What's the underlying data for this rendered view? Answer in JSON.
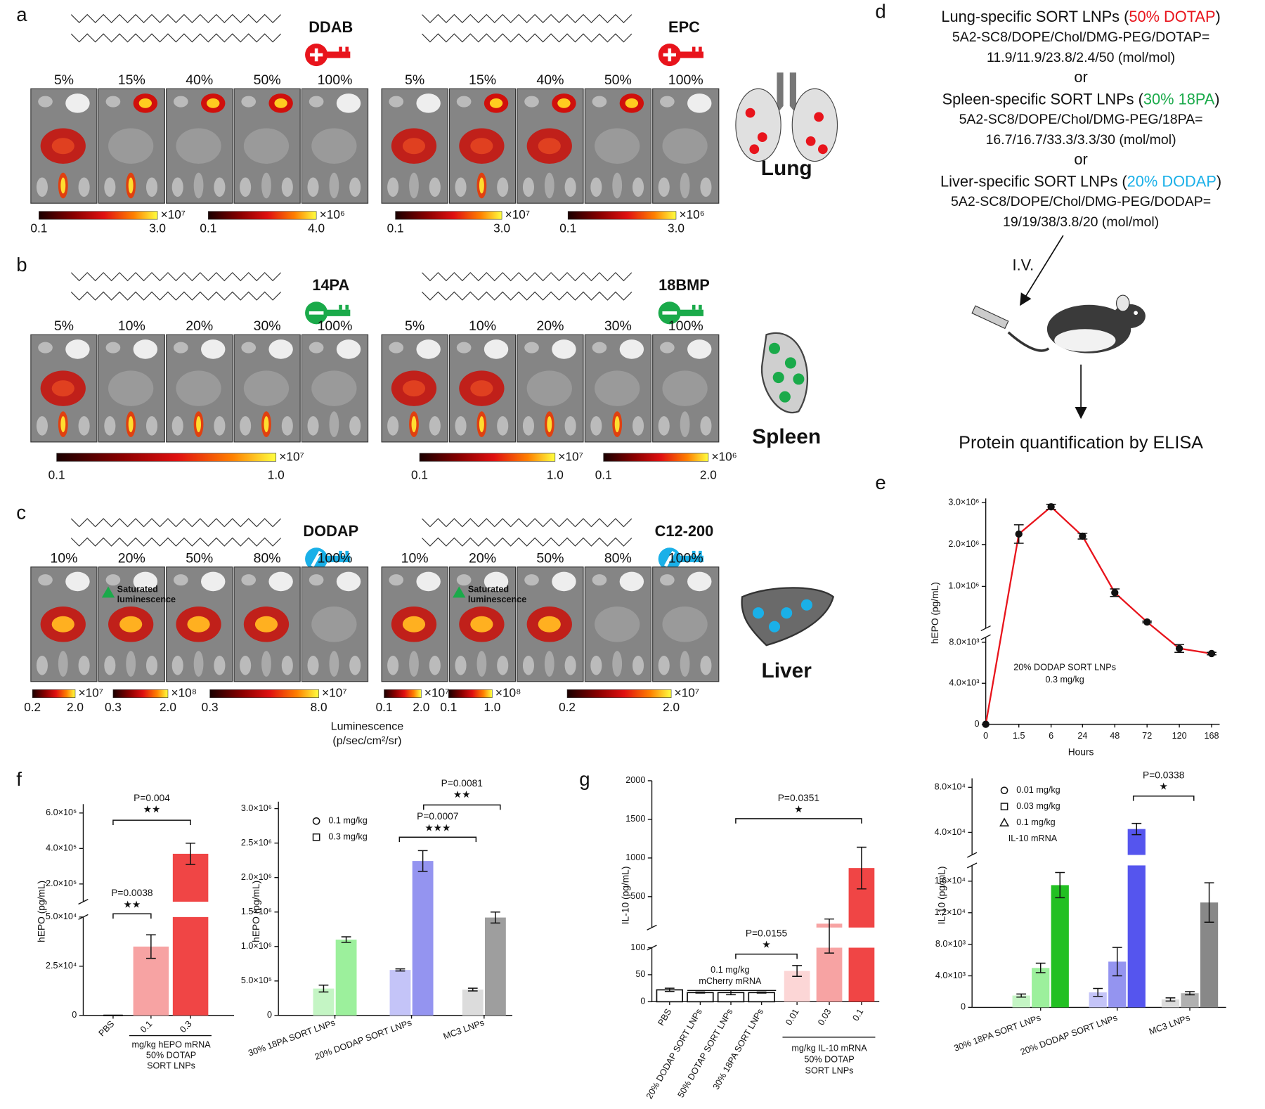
{
  "panels": [
    {
      "letter": "a",
      "organ": "Lung",
      "color": "#e8141c",
      "lipids": [
        {
          "name": "DDAB",
          "percents": [
            "5%",
            "15%",
            "40%",
            "50%",
            "100%"
          ],
          "scales": [
            {
              "min": "0.1",
              "max": "3.0",
              "unit": "×10⁷"
            },
            {
              "min": "0.1",
              "max": "4.0",
              "unit": "×10⁶"
            }
          ]
        },
        {
          "name": "EPC",
          "percents": [
            "5%",
            "15%",
            "40%",
            "50%",
            "100%"
          ],
          "scales": [
            {
              "min": "0.1",
              "max": "3.0",
              "unit": "×10⁷"
            },
            {
              "min": "0.1",
              "max": "3.0",
              "unit": "×10⁶"
            }
          ]
        }
      ]
    },
    {
      "letter": "b",
      "organ": "Spleen",
      "color": "#1aaa4a",
      "lipids": [
        {
          "name": "14PA",
          "percents": [
            "5%",
            "10%",
            "20%",
            "30%",
            "100%"
          ],
          "scales": [
            {
              "min": "0.1",
              "max": "1.0",
              "unit": "×10⁷"
            }
          ]
        },
        {
          "name": "18BMP",
          "percents": [
            "5%",
            "10%",
            "20%",
            "30%",
            "100%"
          ],
          "scales": [
            {
              "min": "0.1",
              "max": "1.0",
              "unit": "×10⁷"
            },
            {
              "min": "0.1",
              "max": "2.0",
              "unit": "×10⁶"
            }
          ]
        }
      ]
    },
    {
      "letter": "c",
      "organ": "Liver",
      "color": "#1ab0e8",
      "lipids": [
        {
          "name": "DODAP",
          "percents": [
            "10%",
            "20%",
            "50%",
            "80%",
            "100%"
          ],
          "note": [
            "Saturated",
            "luminescence"
          ],
          "scales": [
            {
              "min": "0.2",
              "max": "2.0",
              "unit": "×10⁷"
            },
            {
              "min": "0.3",
              "max": "2.0",
              "unit": "×10⁸"
            },
            {
              "min": "0.3",
              "max": "8.0",
              "unit": "×10⁷"
            }
          ]
        },
        {
          "name": "C12-200",
          "percents": [
            "10%",
            "20%",
            "50%",
            "80%",
            "100%"
          ],
          "note": [
            "Saturated",
            "luminescence"
          ],
          "scales": [
            {
              "min": "0.1",
              "max": "2.0",
              "unit": "×10⁷"
            },
            {
              "min": "0.1",
              "max": "1.0",
              "unit": "×10⁸"
            },
            {
              "min": "0.2",
              "max": "2.0",
              "unit": "×10⁷"
            }
          ]
        }
      ]
    }
  ],
  "luminescence": {
    "label": "Luminescence",
    "unit": "(p/sec/cm²/sr)"
  },
  "route": {
    "letter": "d",
    "formulations": [
      {
        "name": "Lung-specific SORT LNPs (",
        "highlight": "50% DOTAP",
        "close": ")",
        "color": "#e8141c",
        "formula": "5A2-SC8/DOPE/Chol/DMG-PEG/DOTAP=",
        "ratio": "11.9/11.9/23.8/2.4/50 (mol/mol)"
      },
      {
        "name": "Spleen-specific SORT LNPs (",
        "highlight": "30% 18PA",
        "close": ")",
        "color": "#1aaa4a",
        "formula": "5A2-SC8/DOPE/Chol/DMG-PEG/18PA=",
        "ratio": "16.7/16.7/33.3/3.3/30 (mol/mol)"
      },
      {
        "name": "Liver-specific SORT LNPs (",
        "highlight": "20% DODAP",
        "close": ")",
        "color": "#1ab0e8",
        "formula": "5A2-SC8/DOPE/Chol/DMG-PEG/DODAP=",
        "ratio": "19/19/38/3.8/20 (mol/mol)"
      }
    ],
    "separator": "or",
    "injection": "I.V.",
    "readout": "Protein quantification by ELISA"
  },
  "chart_data": [
    {
      "type": "line",
      "letter": "e",
      "categories": [
        "0",
        "1.5",
        "6",
        "24",
        "48",
        "72",
        "120",
        "168"
      ],
      "values": [
        0,
        2250000,
        2900000,
        2200000,
        850000,
        150000,
        7400,
        6900
      ],
      "errors": [
        0,
        220000,
        60000,
        70000,
        90000,
        20000,
        380,
        120
      ],
      "color": "#e8141c",
      "segments": [
        {
          "ylim": [
            0,
            8500
          ],
          "yticks": [
            0,
            {
              "value": 4000,
              "label": "4.0×10³"
            },
            {
              "value": 8000,
              "label": "8.0×10³"
            }
          ]
        },
        {
          "ylim": [
            0,
            3100000
          ],
          "yticks": [
            {
              "value": 1000000,
              "label": "1.0×10⁶"
            },
            {
              "value": 2000000,
              "label": "2.0×10⁶"
            },
            {
              "value": 3000000,
              "label": "3.0×10⁶"
            }
          ]
        }
      ],
      "xlabel": "Hours",
      "ylabel": "hEPO (pg/mL)",
      "annotation": [
        "20% DODAP SORT LNPs",
        "0.3 mg/kg"
      ]
    },
    {
      "type": "bar",
      "letter": "f",
      "categories": [
        "PBS",
        "0.1",
        "0.3"
      ],
      "values": [
        0,
        35000,
        370000
      ],
      "errors": [
        0,
        6000,
        60000
      ],
      "colors": [
        "#000000",
        "#f7a3a3",
        "#f04545"
      ],
      "segments": [
        {
          "ylim": [
            0,
            50000
          ],
          "yticks": [
            0,
            {
              "value": 25000,
              "label": "2.5×10⁴"
            },
            {
              "value": 50000,
              "label": "5.0×10⁴"
            }
          ]
        },
        {
          "ylim": [
            100000,
            650000
          ],
          "yticks": [
            {
              "value": 200000,
              "label": "2.0×10⁵"
            },
            {
              "value": 400000,
              "label": "4.0×10⁵"
            },
            {
              "value": 600000,
              "label": "6.0×10⁵"
            }
          ]
        }
      ],
      "ylabel": "hEPO (pg/mL)",
      "xlabel": [
        "mg/kg hEPO mRNA",
        "50% DOTAP",
        "SORT LNPs"
      ],
      "annotations": [
        {
          "p": "P=0.004",
          "stars": "★★"
        },
        {
          "p": "P=0.0038",
          "stars": "★★"
        }
      ]
    },
    {
      "type": "grouped_bar",
      "categories": [
        "30% 18PA SORT LNPs",
        "20% DODAP SORT LNPs",
        "MC3 LNPs"
      ],
      "series": [
        {
          "name": "0.1 mg/kg",
          "marker": "circle",
          "colors": [
            "#c4f5c4",
            "#c4c4f8",
            "#dcdcdc"
          ],
          "values": [
            390000,
            660000,
            375000
          ],
          "errors": [
            50000,
            15000,
            20000
          ]
        },
        {
          "name": "0.3 mg/kg",
          "marker": "square",
          "colors": [
            "#9cf09c",
            "#9494f0",
            "#9e9e9e"
          ],
          "values": [
            1100000,
            2240000,
            1420000
          ],
          "errors": [
            40000,
            150000,
            80000
          ]
        }
      ],
      "segments": [
        {
          "ylim": [
            0,
            3100000
          ],
          "yticks": [
            0,
            {
              "value": 500000,
              "label": "5.0×10⁵"
            },
            {
              "value": 1000000,
              "label": "1.0×10⁶"
            },
            {
              "value": 1500000,
              "label": "1.5×10⁶"
            },
            {
              "value": 2000000,
              "label": "2.0×10⁶"
            },
            {
              "value": 2500000,
              "label": "2.5×10⁶"
            },
            {
              "value": 3000000,
              "label": "3.0×10⁶"
            }
          ]
        }
      ],
      "ylabel": "hEPO (pg/mL)",
      "annotations": [
        {
          "p": "P=0.0081",
          "stars": "★★"
        },
        {
          "p": "P=0.0007",
          "stars": "★★★"
        }
      ]
    },
    {
      "type": "bar",
      "letter": "g",
      "categories": [
        "PBS",
        "20% DODAP SORT LNPs",
        "50% DOTAP SORT LNPs",
        "30% 18PA SORT LNPs",
        "0.01",
        "0.03",
        "0.1"
      ],
      "values": [
        22,
        17,
        17,
        17,
        57,
        150,
        870
      ],
      "errors": [
        3,
        1,
        4,
        1,
        10,
        60,
        270
      ],
      "colors": [
        "#ffffff",
        "#ffffff",
        "#ffffff",
        "#ffffff",
        "#fcd6d6",
        "#f7a3a3",
        "#f04545"
      ],
      "segments": [
        {
          "ylim": [
            0,
            100
          ],
          "yticks": [
            0,
            50,
            100
          ]
        },
        {
          "ylim": [
            100,
            2000
          ],
          "yticks": [
            500,
            1000,
            1500,
            2000
          ]
        }
      ],
      "ylabel": "IL-10 (pg/mL)",
      "groups": [
        [
          "0.1 mg/kg",
          "mCherry mRNA"
        ],
        [
          "mg/kg IL-10 mRNA",
          "50% DOTAP",
          "SORT LNPs"
        ]
      ],
      "annotations": [
        {
          "p": "P=0.0351",
          "stars": "★"
        },
        {
          "p": "P=0.0155",
          "stars": "★"
        }
      ]
    },
    {
      "type": "grouped_bar",
      "categories": [
        "30% 18PA SORT LNPs",
        "20% DODAP SORT LNPs",
        "MC3 LNPs"
      ],
      "series": [
        {
          "name": "0.01 mg/kg",
          "marker": "circle",
          "colors": [
            "#c4f5c4",
            "#c4c4f8",
            "#dcdcdc"
          ],
          "values": [
            1500,
            1900,
            1000
          ],
          "errors": [
            200,
            500,
            200
          ]
        },
        {
          "name": "0.03 mg/kg",
          "marker": "square",
          "colors": [
            "#9cf09c",
            "#9494f0",
            "#b0b0b0"
          ],
          "values": [
            5000,
            5800,
            1800
          ],
          "errors": [
            600,
            1800,
            200
          ]
        },
        {
          "name": "0.1 mg/kg",
          "marker": "triangle",
          "colors": [
            "#22c022",
            "#5555ee",
            "#888888"
          ],
          "values": [
            15500,
            43000,
            13300
          ],
          "errors": [
            1600,
            5000,
            2500
          ]
        }
      ],
      "segments": [
        {
          "ylim": [
            0,
            18000
          ],
          "yticks": [
            0,
            {
              "value": 4000,
              "label": "4.0×10³"
            },
            {
              "value": 8000,
              "label": "8.0×10³"
            },
            {
              "value": 12000,
              "label": "1.2×10⁴"
            },
            {
              "value": 16000,
              "label": "1.6×10⁴"
            }
          ]
        },
        {
          "ylim": [
            20000,
            88000
          ],
          "yticks": [
            {
              "value": 40000,
              "label": "4.0×10⁴"
            },
            {
              "value": 80000,
              "label": "8.0×10⁴"
            }
          ]
        }
      ],
      "ylabel": "IL-10 (pg/mL)",
      "note": "IL-10 mRNA",
      "annotations": [
        {
          "p": "P=0.0338",
          "stars": "★"
        }
      ]
    }
  ]
}
